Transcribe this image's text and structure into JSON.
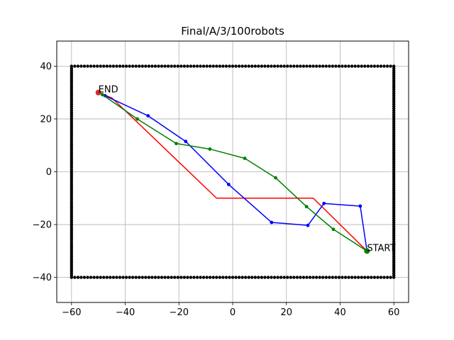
{
  "chart_data": {
    "type": "line",
    "title": "Final/A/3/100robots",
    "xlabel": "",
    "ylabel": "",
    "xlim": [
      -65.5,
      65.5
    ],
    "ylim": [
      -49.5,
      49.5
    ],
    "xticks": [
      -60,
      -40,
      -20,
      0,
      20,
      40,
      60
    ],
    "yticks": [
      -40,
      -20,
      0,
      20,
      40
    ],
    "xtick_labels": [
      "−60",
      "−40",
      "−20",
      "0",
      "20",
      "40",
      "60"
    ],
    "ytick_labels": [
      "−40",
      "−20",
      "0",
      "20",
      "40"
    ],
    "grid": true,
    "boundary": {
      "x_range": [
        -60,
        60
      ],
      "y_range": [
        -40,
        40
      ],
      "points_per_side": 100,
      "color": "#000000"
    },
    "series": [
      {
        "color": "#ff0000",
        "markers": false,
        "points": [
          [
            50,
            -30
          ],
          [
            30,
            -10
          ],
          [
            -6,
            -10
          ],
          [
            -45,
            28
          ],
          [
            -50,
            30
          ]
        ]
      },
      {
        "color": "#0000ff",
        "markers": true,
        "points": [
          [
            50,
            -30
          ],
          [
            47.5,
            -13
          ],
          [
            34,
            -12
          ],
          [
            28,
            -20.3
          ],
          [
            14.5,
            -19.2
          ],
          [
            -1.5,
            -4.8
          ],
          [
            -17.5,
            11.5
          ],
          [
            -31.5,
            21.2
          ],
          [
            -47.5,
            28.8
          ],
          [
            -50,
            30
          ]
        ]
      },
      {
        "color": "#008000",
        "markers": true,
        "points": [
          [
            50,
            -30
          ],
          [
            37.5,
            -21.8
          ],
          [
            27.5,
            -13.2
          ],
          [
            16,
            -2.3
          ],
          [
            4.5,
            5.1
          ],
          [
            -8.5,
            8.6
          ],
          [
            -21,
            10.7
          ],
          [
            -35.5,
            20
          ],
          [
            -48.5,
            29.2
          ],
          [
            -50,
            30
          ]
        ]
      }
    ],
    "annotations": [
      {
        "text": "START",
        "x": 50,
        "y": -30,
        "marker_color": "#008000"
      },
      {
        "text": "END",
        "x": -50,
        "y": 30,
        "marker_color": "#d62728"
      }
    ]
  }
}
